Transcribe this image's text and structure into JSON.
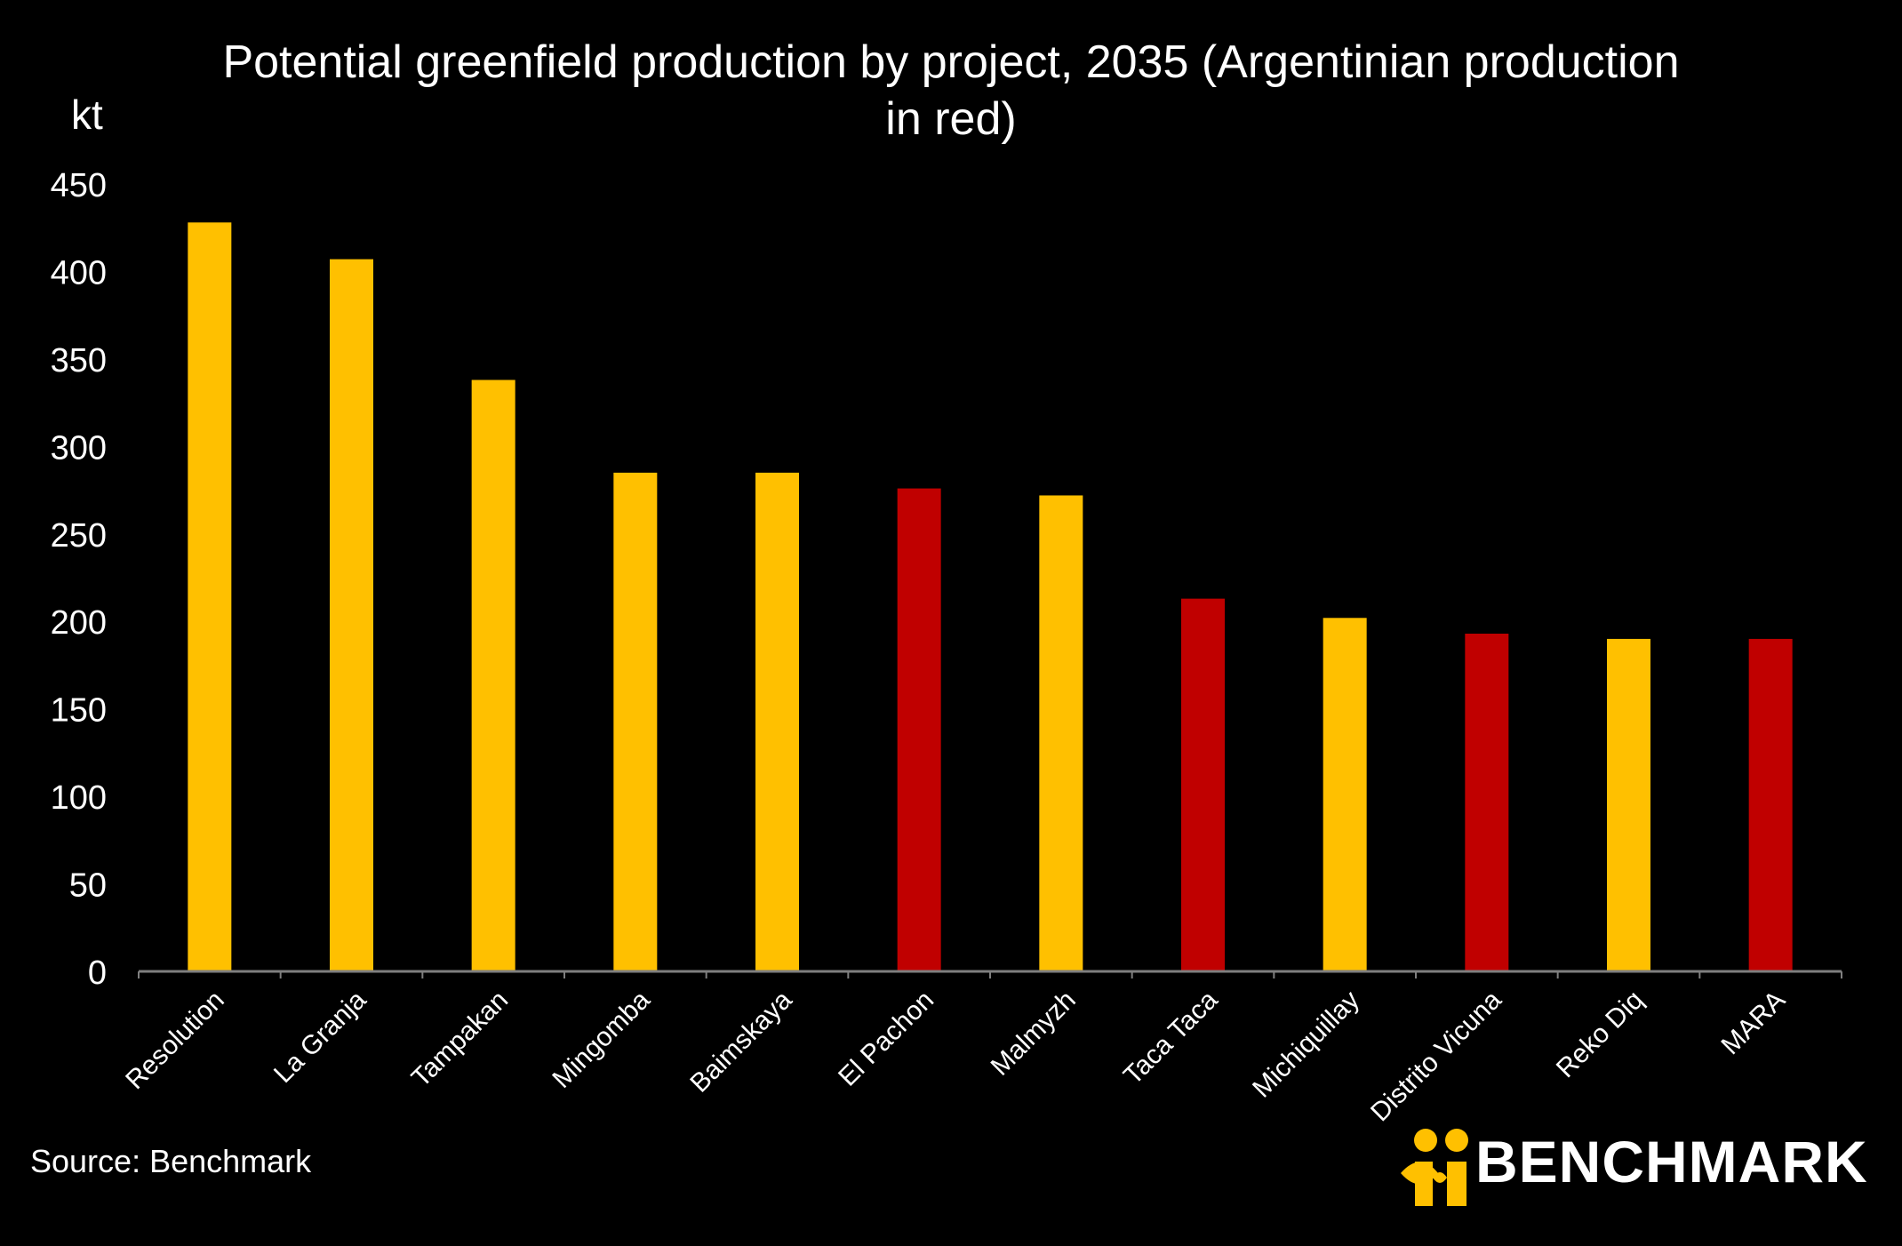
{
  "title": "Potential greenfield production by project, 2035 (Argentinian production in red)",
  "unit_label": "kt",
  "source": "Source: Benchmark",
  "logo_text": "BENCHMARK",
  "colors": {
    "background": "#000000",
    "standard": "#FFC000",
    "argentina": "#C00000",
    "axis": "#7f7f7f"
  },
  "chart_data": {
    "type": "bar",
    "title": "Potential greenfield production by project, 2035 (Argentinian production in red)",
    "ylabel": "kt",
    "ylim": [
      0,
      450
    ],
    "yticks": [
      0,
      50,
      100,
      150,
      200,
      250,
      300,
      350,
      400,
      450
    ],
    "grid": false,
    "categories": [
      "Resolution",
      "La Granja",
      "Tampakan",
      "Mingomba",
      "Baimskaya",
      "El Pachon",
      "Malmyzh",
      "Taca Taca",
      "Michiquillay",
      "Distrito Vicuna",
      "Reko Diq",
      "MARA"
    ],
    "values": [
      428,
      407,
      338,
      285,
      285,
      276,
      272,
      213,
      202,
      193,
      190,
      190
    ],
    "argentinian": [
      false,
      false,
      false,
      false,
      false,
      true,
      false,
      true,
      false,
      true,
      false,
      true
    ]
  }
}
